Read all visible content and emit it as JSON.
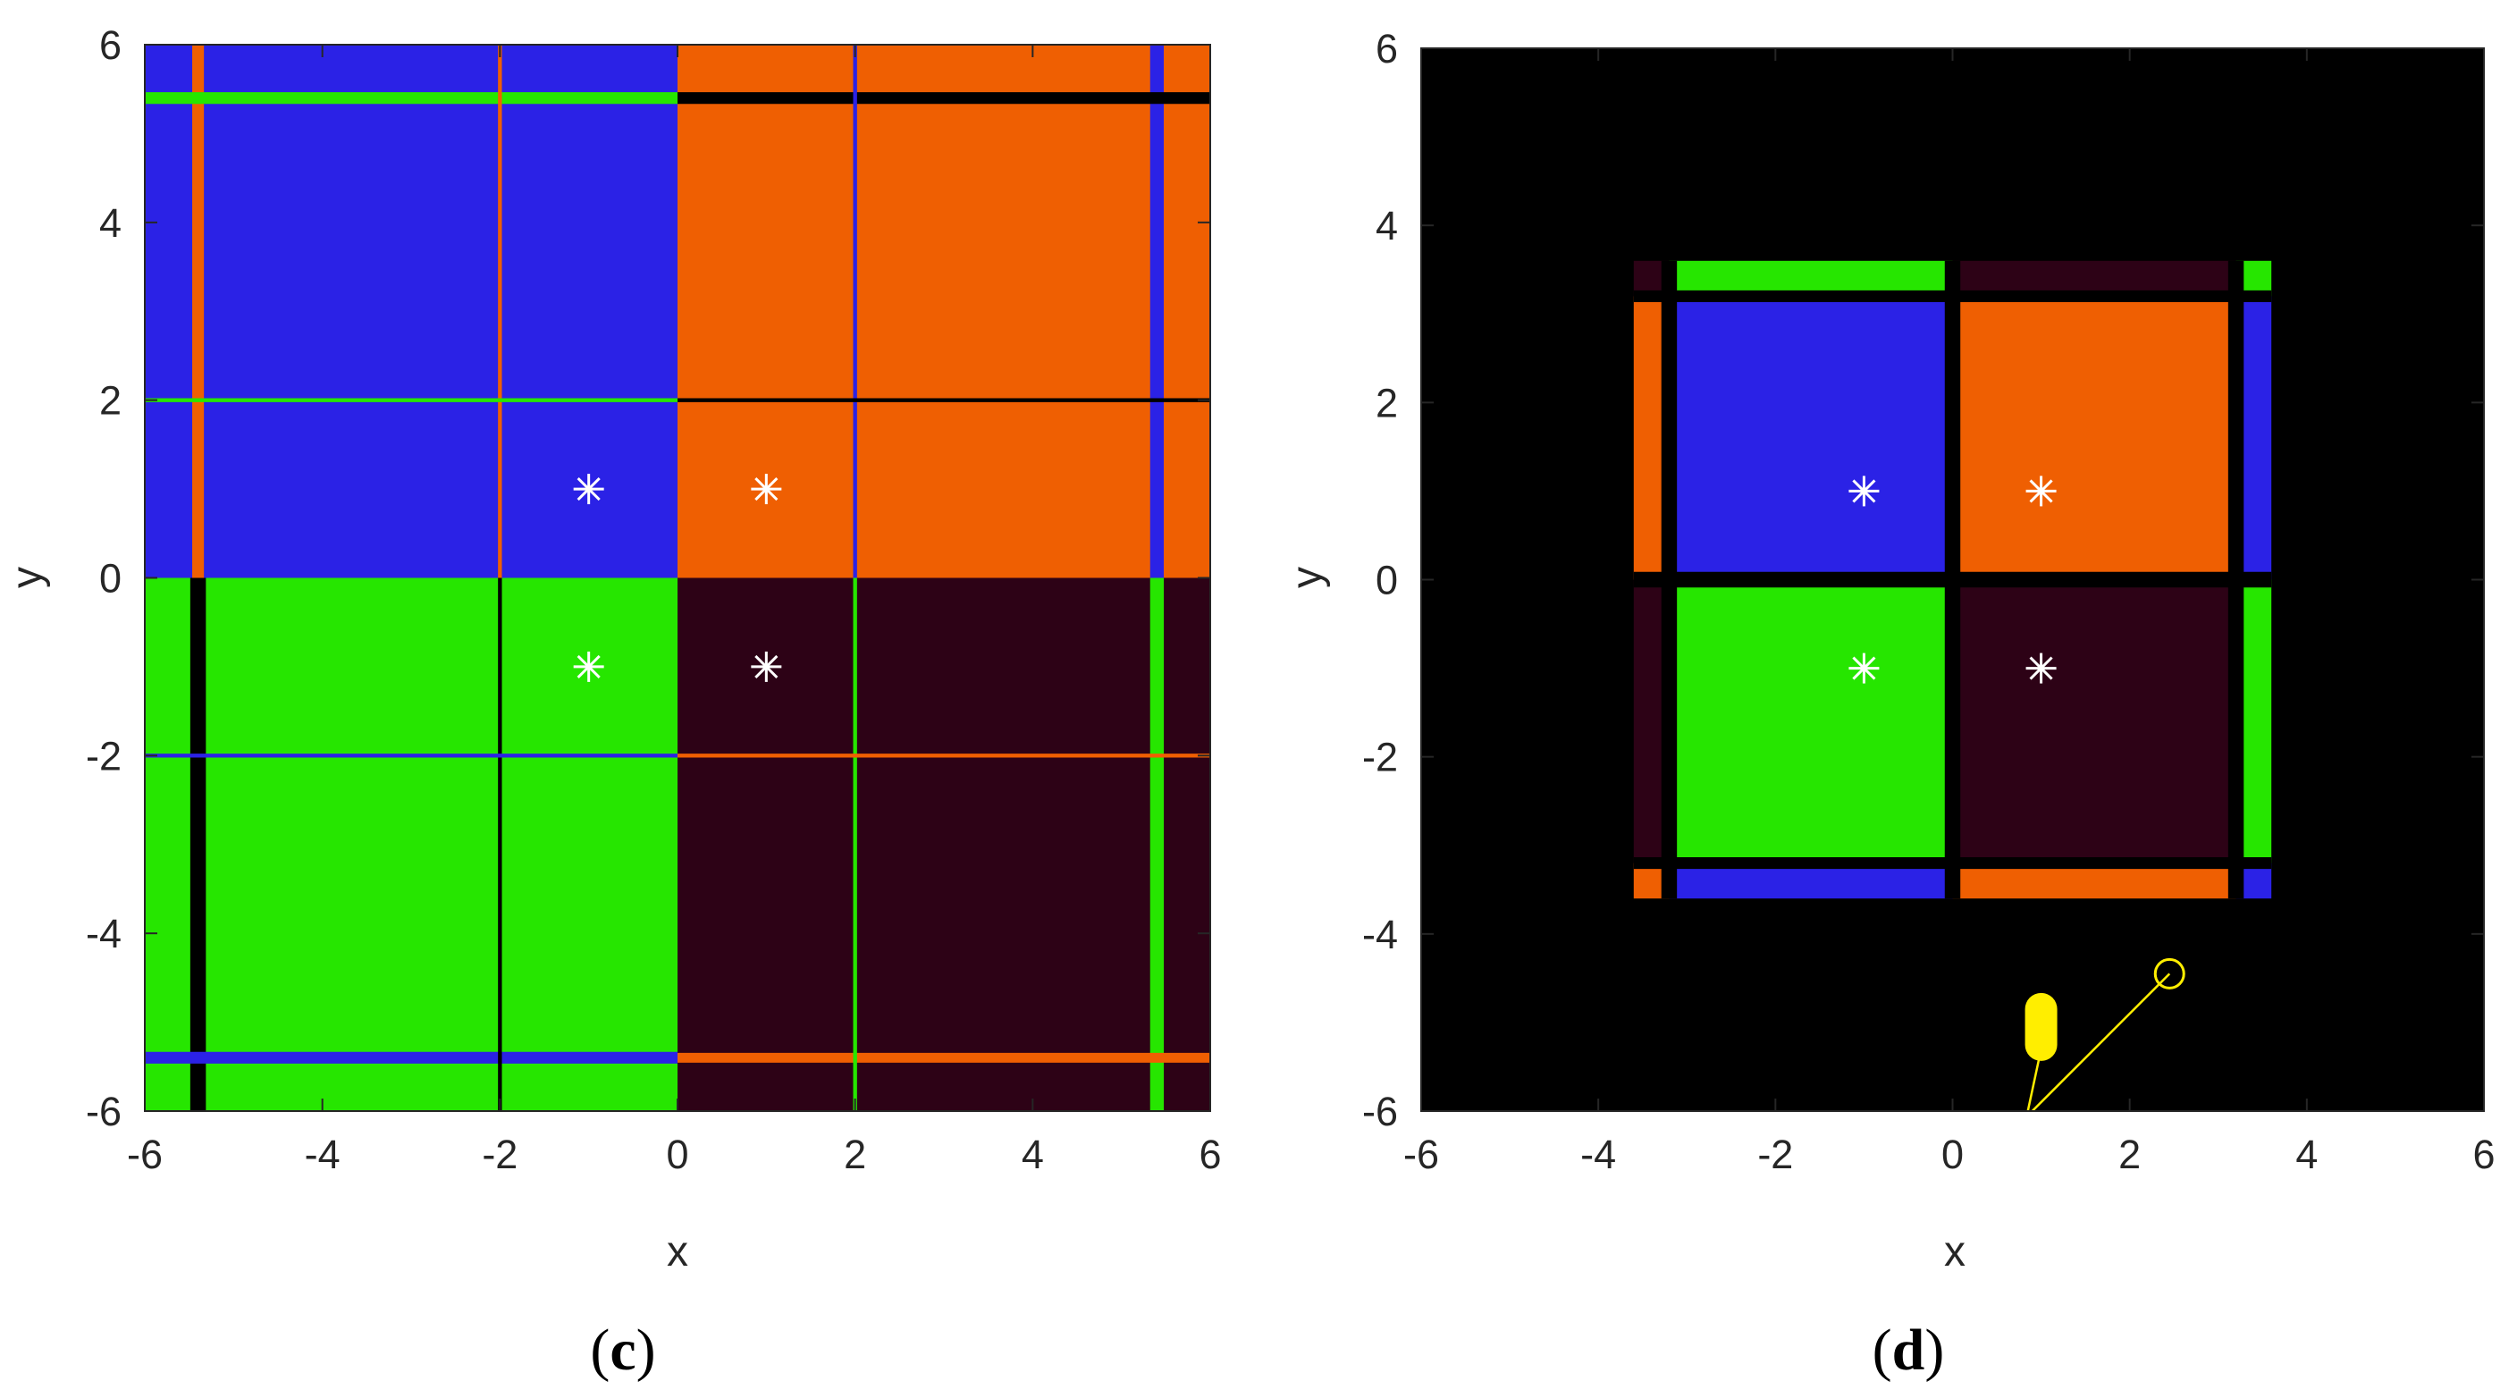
{
  "colors": {
    "blue": "#2b22e6",
    "orange": "#ef5f02",
    "green": "#26e600",
    "dark": "#2d0216",
    "black": "#000000",
    "white": "#ffffff",
    "yellow": "#ffee00",
    "axis": "#262626"
  },
  "chart_data": [
    {
      "type": "heatmap",
      "caption": "(c)",
      "xlabel": "x",
      "ylabel": "y",
      "xlim": [
        -6,
        6
      ],
      "ylim": [
        -6,
        6
      ],
      "xticks": [
        "-6",
        "-4",
        "-2",
        "0",
        "2",
        "4",
        "6"
      ],
      "yticks": [
        "6",
        "4",
        "2",
        "0",
        "-2",
        "-4",
        "-6"
      ],
      "regions": [
        {
          "x": [
            -6,
            0
          ],
          "y": [
            0,
            6
          ],
          "color": "blue"
        },
        {
          "x": [
            0,
            6
          ],
          "y": [
            0,
            6
          ],
          "color": "orange"
        },
        {
          "x": [
            -6,
            0
          ],
          "y": [
            -6,
            0
          ],
          "color": "green"
        },
        {
          "x": [
            0,
            6
          ],
          "y": [
            -6,
            0
          ],
          "color": "dark"
        }
      ],
      "boundary_lines": [
        {
          "orient": "v",
          "pos": -5.4,
          "from": 0,
          "to": 6,
          "color": "orange",
          "w": 1.2
        },
        {
          "orient": "v",
          "pos": -5.4,
          "from": -6,
          "to": 0,
          "color": "black",
          "w": 1.6
        },
        {
          "orient": "v",
          "pos": 5.4,
          "from": 0,
          "to": 6,
          "color": "blue",
          "w": 1.4
        },
        {
          "orient": "v",
          "pos": 5.4,
          "from": -6,
          "to": 0,
          "color": "green",
          "w": 1.4
        },
        {
          "orient": "h",
          "pos": 5.4,
          "from": -6,
          "to": 0,
          "color": "green",
          "w": 1.2
        },
        {
          "orient": "h",
          "pos": 5.4,
          "from": 0,
          "to": 6,
          "color": "black",
          "w": 1.2
        },
        {
          "orient": "h",
          "pos": -5.4,
          "from": -6,
          "to": 0,
          "color": "blue",
          "w": 1.2
        },
        {
          "orient": "h",
          "pos": -5.4,
          "from": 0,
          "to": 6,
          "color": "orange",
          "w": 1.0
        },
        {
          "orient": "v",
          "pos": -2,
          "from": 0,
          "to": 6,
          "color": "orange",
          "w": 0.4
        },
        {
          "orient": "v",
          "pos": -2,
          "from": -6,
          "to": 0,
          "color": "black",
          "w": 0.4
        },
        {
          "orient": "v",
          "pos": 2,
          "from": 0,
          "to": 6,
          "color": "blue",
          "w": 0.4
        },
        {
          "orient": "v",
          "pos": 2,
          "from": -6,
          "to": 0,
          "color": "green",
          "w": 0.4
        },
        {
          "orient": "h",
          "pos": 2,
          "from": -6,
          "to": 0,
          "color": "green",
          "w": 0.4
        },
        {
          "orient": "h",
          "pos": 2,
          "from": 0,
          "to": 6,
          "color": "black",
          "w": 0.4
        },
        {
          "orient": "h",
          "pos": -2,
          "from": -6,
          "to": 0,
          "color": "blue",
          "w": 0.4
        },
        {
          "orient": "h",
          "pos": -2,
          "from": 0,
          "to": 6,
          "color": "orange",
          "w": 0.4
        }
      ],
      "markers": [
        {
          "x": -1,
          "y": 1
        },
        {
          "x": 1,
          "y": 1
        },
        {
          "x": -1,
          "y": -1
        },
        {
          "x": 1,
          "y": -1
        }
      ]
    },
    {
      "type": "heatmap",
      "caption": "(d)",
      "xlabel": "x",
      "ylabel": "y",
      "xlim": [
        -6,
        6
      ],
      "ylim": [
        -6,
        6
      ],
      "xticks": [
        "-6",
        "-4",
        "-2",
        "0",
        "2",
        "4",
        "6"
      ],
      "yticks": [
        "6",
        "4",
        "2",
        "0",
        "-2",
        "-4",
        "-6"
      ],
      "background": "black",
      "regions": [
        {
          "x": [
            -3.6,
            3.6
          ],
          "y": [
            -3.6,
            3.6
          ],
          "color": "black"
        },
        {
          "x": [
            -3.6,
            -3.2
          ],
          "y": [
            3.2,
            3.6
          ],
          "color": "dark"
        },
        {
          "x": [
            -3.2,
            0
          ],
          "y": [
            3.2,
            3.6
          ],
          "color": "green"
        },
        {
          "x": [
            0,
            3.2
          ],
          "y": [
            3.2,
            3.6
          ],
          "color": "dark"
        },
        {
          "x": [
            3.2,
            3.6
          ],
          "y": [
            3.2,
            3.6
          ],
          "color": "green"
        },
        {
          "x": [
            -3.6,
            -3.2
          ],
          "y": [
            0,
            3.2
          ],
          "color": "orange"
        },
        {
          "x": [
            -3.2,
            0
          ],
          "y": [
            0,
            3.2
          ],
          "color": "blue"
        },
        {
          "x": [
            0,
            3.2
          ],
          "y": [
            0,
            3.2
          ],
          "color": "orange"
        },
        {
          "x": [
            3.2,
            3.6
          ],
          "y": [
            0,
            3.2
          ],
          "color": "blue"
        },
        {
          "x": [
            -3.6,
            -3.2
          ],
          "y": [
            -3.2,
            0
          ],
          "color": "dark"
        },
        {
          "x": [
            -3.2,
            0
          ],
          "y": [
            -3.2,
            0
          ],
          "color": "green"
        },
        {
          "x": [
            0,
            3.2
          ],
          "y": [
            -3.2,
            0
          ],
          "color": "dark"
        },
        {
          "x": [
            3.2,
            3.6
          ],
          "y": [
            -3.2,
            0
          ],
          "color": "green"
        },
        {
          "x": [
            -3.6,
            -3.2
          ],
          "y": [
            -3.6,
            -3.2
          ],
          "color": "orange"
        },
        {
          "x": [
            -3.2,
            0
          ],
          "y": [
            -3.6,
            -3.2
          ],
          "color": "blue"
        },
        {
          "x": [
            0,
            3.2
          ],
          "y": [
            -3.6,
            -3.2
          ],
          "color": "orange"
        },
        {
          "x": [
            3.2,
            3.6
          ],
          "y": [
            -3.6,
            -3.2
          ],
          "color": "blue"
        }
      ],
      "boundary_lines": [
        {
          "orient": "v",
          "pos": -3.2,
          "from": -3.6,
          "to": 3.6,
          "color": "black",
          "w": 1.6
        },
        {
          "orient": "v",
          "pos": 0,
          "from": -3.6,
          "to": 3.6,
          "color": "black",
          "w": 1.6
        },
        {
          "orient": "v",
          "pos": 3.2,
          "from": -3.6,
          "to": 3.6,
          "color": "black",
          "w": 1.6
        },
        {
          "orient": "h",
          "pos": 3.2,
          "from": -3.6,
          "to": 3.6,
          "color": "black",
          "w": 1.2
        },
        {
          "orient": "h",
          "pos": 0,
          "from": -3.6,
          "to": 3.6,
          "color": "black",
          "w": 1.6
        },
        {
          "orient": "h",
          "pos": -3.2,
          "from": -3.6,
          "to": 3.6,
          "color": "black",
          "w": 1.2
        }
      ],
      "markers": [
        {
          "x": -1,
          "y": 1
        },
        {
          "x": 1,
          "y": 1
        },
        {
          "x": -1,
          "y": -1
        },
        {
          "x": 1,
          "y": -1
        }
      ],
      "yellow_trajectory": {
        "circle": {
          "x": 2.45,
          "y": -4.45
        },
        "line": [
          [
            2.45,
            -4.45
          ],
          [
            0.9,
            -6.0
          ]
        ],
        "blob": {
          "x": 1.0,
          "y": -5.05
        },
        "tail": [
          [
            1.0,
            -5.3
          ],
          [
            0.85,
            -6.0
          ]
        ]
      }
    }
  ]
}
